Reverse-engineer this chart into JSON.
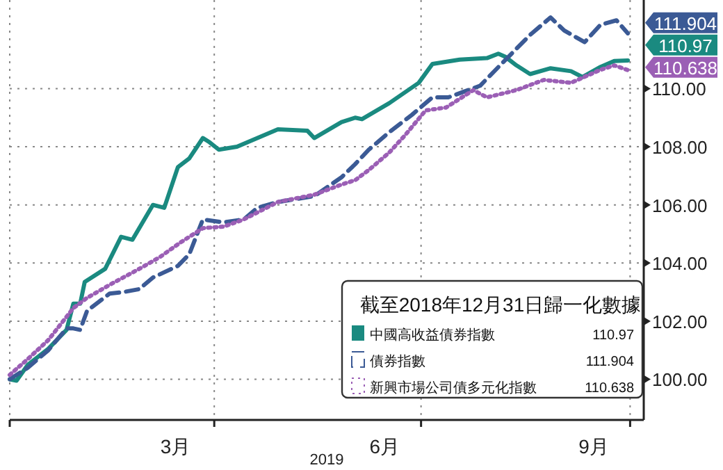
{
  "chart_data": {
    "type": "line",
    "xlabel": "2019",
    "legend_title": "截至2018年12月31日歸一化數據",
    "legend": "bottom right",
    "grid": true,
    "xlim": [
      "2019-01-01",
      "2019-10-07"
    ],
    "ylim": [
      98.6,
      113.05
    ],
    "xticks": [
      {
        "value": "2019-01-01",
        "label": null
      },
      {
        "value": "2019-03-15",
        "label": "3月"
      },
      {
        "value": "2019-04-01",
        "label": null
      },
      {
        "value": "2019-06-15",
        "label": "6月"
      },
      {
        "value": "2019-07-01",
        "label": null
      },
      {
        "value": "2019-09-15",
        "label": "9月"
      },
      {
        "value": "2019-10-01",
        "label": null
      }
    ],
    "yticks": [
      {
        "value": 100,
        "label": "100.00"
      },
      {
        "value": 102,
        "label": "102.00"
      },
      {
        "value": 104,
        "label": "104.00"
      },
      {
        "value": 106,
        "label": "106.00"
      },
      {
        "value": 108,
        "label": "108.00"
      },
      {
        "value": 110,
        "label": "110.00"
      }
    ],
    "series": [
      {
        "name": "中國高收益債券指數",
        "color": "#1a8a80",
        "line_style": "solid",
        "x": [
          "2019-01-01",
          "2019-01-04",
          "2019-01-09",
          "2019-01-18",
          "2019-01-26",
          "2019-01-29",
          "2019-02-01",
          "2019-02-03",
          "2019-02-12",
          "2019-02-19",
          "2019-02-24",
          "2019-03-05",
          "2019-03-10",
          "2019-03-16",
          "2019-03-21",
          "2019-03-27",
          "2019-03-30",
          "2019-04-03",
          "2019-04-11",
          "2019-04-20",
          "2019-04-29",
          "2019-05-12",
          "2019-05-15",
          "2019-05-27",
          "2019-06-02",
          "2019-06-05",
          "2019-06-17",
          "2019-06-30",
          "2019-07-06",
          "2019-07-18",
          "2019-07-30",
          "2019-08-04",
          "2019-08-07",
          "2019-08-12",
          "2019-08-18",
          "2019-08-27",
          "2019-09-05",
          "2019-09-10",
          "2019-09-18",
          "2019-09-24",
          "2019-09-30"
        ],
        "values": [
          100.0,
          99.95,
          100.5,
          101.05,
          101.7,
          102.6,
          102.6,
          103.35,
          103.8,
          104.9,
          104.8,
          106.0,
          105.9,
          107.3,
          107.6,
          108.3,
          108.15,
          107.9,
          108.0,
          108.3,
          108.6,
          108.55,
          108.3,
          108.85,
          109.0,
          108.95,
          109.5,
          110.2,
          110.85,
          111.0,
          111.05,
          111.2,
          111.1,
          110.8,
          110.5,
          110.7,
          110.6,
          110.4,
          110.75,
          110.95,
          110.97
        ],
        "value_labels": [
          null,
          null,
          null,
          null,
          null,
          null,
          null,
          null,
          null,
          null,
          null,
          null,
          null,
          null,
          null,
          null,
          null,
          null,
          null,
          null,
          null,
          null,
          null,
          null,
          null,
          null,
          null,
          null,
          null,
          null,
          null,
          null,
          null,
          null,
          null,
          null,
          null,
          null,
          null,
          null,
          "110.97"
        ]
      },
      {
        "name": "債券指數",
        "color": "#3b5a95",
        "line_style": "dashed",
        "x": [
          "2019-01-01",
          "2019-01-09",
          "2019-01-18",
          "2019-01-26",
          "2019-01-29",
          "2019-02-01",
          "2019-02-04",
          "2019-02-14",
          "2019-02-20",
          "2019-02-27",
          "2019-03-05",
          "2019-03-16",
          "2019-03-21",
          "2019-03-27",
          "2019-04-05",
          "2019-04-14",
          "2019-04-20",
          "2019-04-29",
          "2019-05-15",
          "2019-05-27",
          "2019-06-02",
          "2019-06-08",
          "2019-06-17",
          "2019-06-27",
          "2019-07-06",
          "2019-07-13",
          "2019-07-27",
          "2019-08-06",
          "2019-08-18",
          "2019-08-27",
          "2019-09-02",
          "2019-09-11",
          "2019-09-18",
          "2019-09-25",
          "2019-09-30"
        ],
        "values": [
          100.0,
          100.4,
          101.0,
          101.75,
          101.75,
          101.7,
          102.35,
          102.95,
          103.0,
          103.1,
          103.5,
          103.9,
          104.3,
          105.5,
          105.4,
          105.5,
          105.9,
          106.1,
          106.3,
          106.95,
          107.4,
          107.9,
          108.5,
          109.1,
          109.7,
          109.7,
          110.1,
          110.9,
          111.85,
          112.45,
          112.0,
          111.6,
          112.2,
          112.35,
          111.904
        ],
        "value_labels": [
          null,
          null,
          null,
          null,
          null,
          null,
          null,
          null,
          null,
          null,
          null,
          null,
          null,
          null,
          null,
          null,
          null,
          null,
          null,
          null,
          null,
          null,
          null,
          null,
          null,
          null,
          null,
          null,
          null,
          null,
          null,
          null,
          null,
          null,
          "111.904"
        ]
      },
      {
        "name": "新興市場公司債多元化指數",
        "color": "#9b5fb5",
        "line_style": "dotted",
        "x": [
          "2019-01-01",
          "2019-01-09",
          "2019-01-18",
          "2019-01-29",
          "2019-02-04",
          "2019-02-14",
          "2019-02-27",
          "2019-03-08",
          "2019-03-17",
          "2019-03-27",
          "2019-04-05",
          "2019-04-14",
          "2019-04-29",
          "2019-05-15",
          "2019-05-27",
          "2019-06-02",
          "2019-06-08",
          "2019-06-17",
          "2019-06-24",
          "2019-07-03",
          "2019-07-12",
          "2019-07-24",
          "2019-07-30",
          "2019-08-12",
          "2019-08-24",
          "2019-09-05",
          "2019-09-18",
          "2019-09-24",
          "2019-09-30"
        ],
        "values": [
          100.15,
          100.7,
          101.35,
          102.45,
          102.8,
          103.25,
          103.8,
          104.2,
          104.7,
          105.2,
          105.25,
          105.5,
          106.1,
          106.35,
          106.7,
          106.85,
          107.2,
          107.8,
          108.4,
          109.25,
          109.35,
          109.95,
          109.7,
          109.95,
          110.3,
          110.2,
          110.65,
          110.8,
          110.638
        ],
        "value_labels": [
          null,
          null,
          null,
          null,
          null,
          null,
          null,
          null,
          null,
          null,
          null,
          null,
          null,
          null,
          null,
          null,
          null,
          null,
          null,
          null,
          null,
          null,
          null,
          null,
          null,
          null,
          null,
          null,
          "110.638"
        ]
      }
    ]
  }
}
